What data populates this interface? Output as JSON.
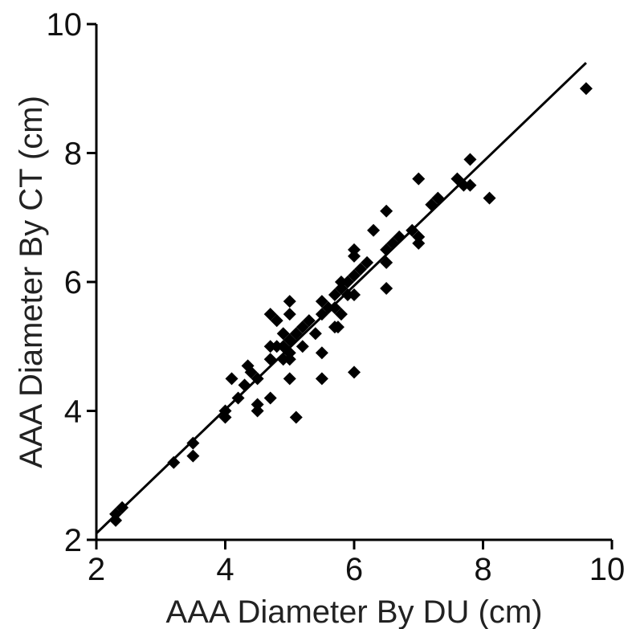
{
  "chart_data": {
    "type": "scatter",
    "xlabel": "AAA Diameter By DU (cm)",
    "ylabel": "AAA Diameter By CT (cm)",
    "xlim": [
      2,
      10
    ],
    "ylim": [
      2,
      10
    ],
    "xticks": [
      2,
      4,
      6,
      8,
      10
    ],
    "yticks": [
      2,
      4,
      6,
      8,
      10
    ],
    "grid": false,
    "marker": "diamond",
    "marker_color": "#000000",
    "fit_line": {
      "x": [
        2,
        9.6
      ],
      "y": [
        2.1,
        9.4
      ]
    },
    "points": [
      [
        2.3,
        2.3
      ],
      [
        2.3,
        2.4
      ],
      [
        2.4,
        2.5
      ],
      [
        3.2,
        3.2
      ],
      [
        3.5,
        3.3
      ],
      [
        3.5,
        3.5
      ],
      [
        4.0,
        3.9
      ],
      [
        4.0,
        4.0
      ],
      [
        4.1,
        4.5
      ],
      [
        4.2,
        4.2
      ],
      [
        4.3,
        4.4
      ],
      [
        4.35,
        4.7
      ],
      [
        4.4,
        4.6
      ],
      [
        4.5,
        4.0
      ],
      [
        4.5,
        4.1
      ],
      [
        4.5,
        4.5
      ],
      [
        4.7,
        4.2
      ],
      [
        4.7,
        4.8
      ],
      [
        4.7,
        5.0
      ],
      [
        4.7,
        5.5
      ],
      [
        4.8,
        5.0
      ],
      [
        4.8,
        5.4
      ],
      [
        4.9,
        4.8
      ],
      [
        4.9,
        5.0
      ],
      [
        4.9,
        5.2
      ],
      [
        5.0,
        4.5
      ],
      [
        5.0,
        4.8
      ],
      [
        5.0,
        4.9
      ],
      [
        5.0,
        5.1
      ],
      [
        5.0,
        5.5
      ],
      [
        5.0,
        5.7
      ],
      [
        5.1,
        3.9
      ],
      [
        5.1,
        5.2
      ],
      [
        5.2,
        5.0
      ],
      [
        5.2,
        5.3
      ],
      [
        5.3,
        5.4
      ],
      [
        5.4,
        5.2
      ],
      [
        5.5,
        4.5
      ],
      [
        5.5,
        4.9
      ],
      [
        5.5,
        5.5
      ],
      [
        5.5,
        5.7
      ],
      [
        5.6,
        5.6
      ],
      [
        5.7,
        5.3
      ],
      [
        5.7,
        5.6
      ],
      [
        5.7,
        5.8
      ],
      [
        5.75,
        5.3
      ],
      [
        5.8,
        5.5
      ],
      [
        5.8,
        5.9
      ],
      [
        5.8,
        6.0
      ],
      [
        5.9,
        5.8
      ],
      [
        5.9,
        6.0
      ],
      [
        6.0,
        4.6
      ],
      [
        6.0,
        5.8
      ],
      [
        6.0,
        6.1
      ],
      [
        6.0,
        6.4
      ],
      [
        6.0,
        6.5
      ],
      [
        6.1,
        6.2
      ],
      [
        6.2,
        6.3
      ],
      [
        6.3,
        6.8
      ],
      [
        6.5,
        5.9
      ],
      [
        6.5,
        6.3
      ],
      [
        6.5,
        6.5
      ],
      [
        6.5,
        7.1
      ],
      [
        6.6,
        6.6
      ],
      [
        6.7,
        6.7
      ],
      [
        6.9,
        6.8
      ],
      [
        7.0,
        6.6
      ],
      [
        7.0,
        6.7
      ],
      [
        7.0,
        7.6
      ],
      [
        7.2,
        7.2
      ],
      [
        7.3,
        7.3
      ],
      [
        7.6,
        7.6
      ],
      [
        7.7,
        7.5
      ],
      [
        7.8,
        7.5
      ],
      [
        7.8,
        7.9
      ],
      [
        8.1,
        7.3
      ],
      [
        9.6,
        9.0
      ]
    ]
  }
}
